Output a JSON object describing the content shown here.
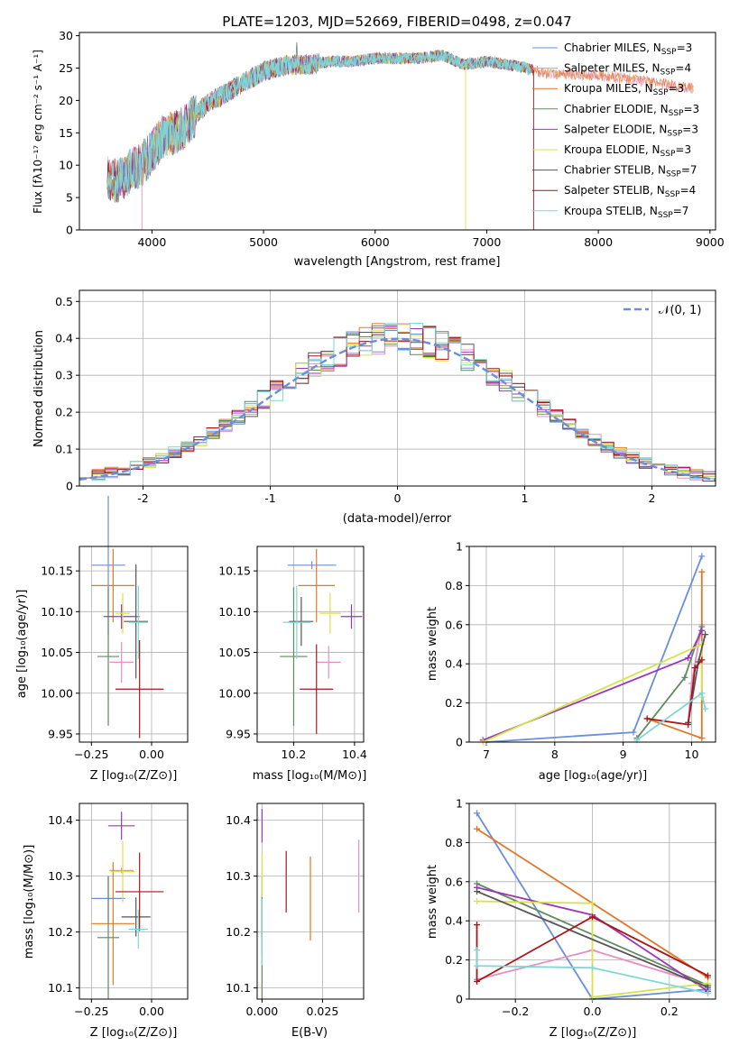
{
  "figure_title": "PLATE=1203, MJD=52669, FIBERID=0498, z=0.047",
  "colors": [
    "#6a8fd8",
    "#e58fc2",
    "#e0782a",
    "#5f8a5f",
    "#9a36b8",
    "#d7e24a",
    "#555555",
    "#a8161c",
    "#7fd6d8"
  ],
  "chart_data": [
    {
      "id": "spectrum",
      "type": "line",
      "xlabel": "wavelength [Angstrom, rest frame]",
      "ylabel": "Flux [fλ10⁻¹⁷ erg cm⁻² s⁻¹ A⁻¹]",
      "xlim": [
        3350,
        9050
      ],
      "ylim": [
        0,
        30.5
      ],
      "x_ticks": [
        4000,
        5000,
        6000,
        7000,
        8000,
        9000
      ],
      "y_ticks": [
        0,
        5,
        10,
        15,
        20,
        25,
        30
      ],
      "data_points": {
        "x": [
          3600,
          3700,
          3800,
          3900,
          4000,
          4100,
          4200,
          4300,
          4400,
          4500,
          4600,
          4800,
          5000,
          5200,
          5400,
          5600,
          5800,
          6000,
          6200,
          6400,
          6600,
          6800,
          7000,
          7200,
          7350,
          7450,
          7600,
          7800,
          8000,
          8200,
          8400,
          8600,
          8800
        ],
        "y": [
          8,
          7.5,
          9,
          10,
          12,
          14.5,
          15,
          16,
          18,
          19.5,
          20.5,
          22.5,
          24.5,
          25.5,
          25.5,
          26,
          26,
          26.5,
          26.5,
          26.5,
          27,
          25.5,
          26,
          25.5,
          25,
          24.5,
          24,
          24,
          24,
          23.5,
          23,
          22.5,
          22
        ]
      },
      "series": [
        {
          "name": "Chabrier MILES, N",
          "sub": "SSP",
          "suffix": "=3"
        },
        {
          "name": "Salpeter MILES, N",
          "sub": "SSP",
          "suffix": "=4"
        },
        {
          "name": "Kroupa MILES, N",
          "sub": "SSP",
          "suffix": "=3"
        },
        {
          "name": "Chabrier ELODIE, N",
          "sub": "SSP",
          "suffix": "=3"
        },
        {
          "name": "Salpeter ELODIE, N",
          "sub": "SSP",
          "suffix": "=3"
        },
        {
          "name": "Kroupa ELODIE, N",
          "sub": "SSP",
          "suffix": "=3"
        },
        {
          "name": "Chabrier STELIB, N",
          "sub": "SSP",
          "suffix": "=7"
        },
        {
          "name": "Salpeter STELIB, N",
          "sub": "SSP",
          "suffix": "=4"
        },
        {
          "name": "Kroupa STELIB, N",
          "sub": "SSP",
          "suffix": "=7"
        }
      ]
    },
    {
      "id": "residuals",
      "type": "line",
      "xlabel": "(data-model)/error",
      "ylabel": "Normed distribution",
      "xlim": [
        -2.5,
        2.5
      ],
      "ylim": [
        0,
        0.53
      ],
      "x_ticks": [
        -2,
        -1,
        0,
        1,
        2
      ],
      "y_ticks": [
        0.0,
        0.1,
        0.2,
        0.3,
        0.4,
        0.5
      ],
      "bin_width": 0.1,
      "legend": "𝒩(0, 1)",
      "grid": true
    },
    {
      "id": "age_vs_Z",
      "type": "scatter",
      "xlabel": "Z [log₁₀(Z/Z⊙)]",
      "ylabel": "age  [log₁₀(age/yr)]",
      "xlim": [
        -0.3,
        0.15
      ],
      "ylim": [
        9.94,
        10.18
      ],
      "x_ticks": [
        -0.25,
        0.0
      ],
      "x_tick_labels": [
        "−0.25",
        "0.00"
      ],
      "y_ticks": [
        9.95,
        10.0,
        10.05,
        10.1,
        10.15
      ],
      "y_tick_labels": [
        "9.95",
        "10.00",
        "10.05",
        "10.10",
        "10.15"
      ],
      "points": [
        {
          "x": -0.18,
          "y": 10.157,
          "xerr": 0.07,
          "yerr": 0.085
        },
        {
          "x": -0.125,
          "y": 10.038,
          "xerr": 0.05,
          "yerr": 0.025
        },
        {
          "x": -0.16,
          "y": 10.132,
          "xerr": 0.09,
          "yerr": 0.045
        },
        {
          "x": -0.18,
          "y": 10.045,
          "xerr": 0.045,
          "yerr": 0.085
        },
        {
          "x": -0.125,
          "y": 10.094,
          "xerr": 0.075,
          "yerr": 0.015
        },
        {
          "x": -0.12,
          "y": 10.098,
          "xerr": 0.03,
          "yerr": 0.025
        },
        {
          "x": -0.065,
          "y": 10.088,
          "xerr": 0.05,
          "yerr": 0.07
        },
        {
          "x": -0.05,
          "y": 10.005,
          "xerr": 0.1,
          "yerr": 0.06
        },
        {
          "x": -0.055,
          "y": 10.087,
          "xerr": 0.04,
          "yerr": 0.045
        }
      ]
    },
    {
      "id": "age_vs_mass",
      "type": "scatter",
      "xlabel": "mass [log₁₀(M/M⊙)]",
      "xlim": [
        10.08,
        10.43
      ],
      "ylim": [
        9.94,
        10.18
      ],
      "x_ticks": [
        10.2,
        10.4
      ],
      "x_tick_labels": [
        "10.2",
        "10.4"
      ],
      "y_ticks": [
        9.95,
        10.0,
        10.05,
        10.1,
        10.15
      ],
      "y_tick_labels": [
        "9.95",
        "10.00",
        "10.05",
        "10.10",
        "10.15"
      ],
      "points": [
        {
          "x": 10.26,
          "y": 10.157,
          "xerr": 0.08,
          "yerr": 0.005
        },
        {
          "x": 10.315,
          "y": 10.038,
          "xerr": 0.04,
          "yerr": 0.02
        },
        {
          "x": 10.275,
          "y": 10.132,
          "xerr": 0.06,
          "yerr": 0.045
        },
        {
          "x": 10.2,
          "y": 10.045,
          "xerr": 0.045,
          "yerr": 0.085
        },
        {
          "x": 10.39,
          "y": 10.094,
          "xerr": 0.035,
          "yerr": 0.015
        },
        {
          "x": 10.32,
          "y": 10.098,
          "xerr": 0.035,
          "yerr": 0.025
        },
        {
          "x": 10.225,
          "y": 10.088,
          "xerr": 0.04,
          "yerr": 0.03
        },
        {
          "x": 10.275,
          "y": 10.005,
          "xerr": 0.055,
          "yerr": 0.055
        },
        {
          "x": 10.21,
          "y": 10.087,
          "xerr": 0.045,
          "yerr": 0.045
        }
      ]
    },
    {
      "id": "mass_weight_vs_age",
      "type": "line",
      "xlabel": "age  [log₁₀(age/yr)]",
      "ylabel": "mass weight",
      "xlim": [
        6.75,
        10.35
      ],
      "ylim": [
        0,
        1.0
      ],
      "x_ticks": [
        7,
        8,
        9,
        10
      ],
      "y_ticks": [
        0.0,
        0.2,
        0.4,
        0.6,
        0.8,
        1.0
      ],
      "series": [
        {
          "x": [
            7.0,
            9.15,
            10.15
          ],
          "y": [
            0.0,
            0.05,
            0.95
          ]
        },
        {
          "x": [
            9.95,
            10.0,
            10.15
          ],
          "y": [
            0.1,
            0.3,
            0.6
          ]
        },
        {
          "x": [
            9.35,
            10.15,
            10.15
          ],
          "y": [
            0.12,
            0.02,
            0.87
          ]
        },
        {
          "x": [
            9.2,
            9.9,
            10.15
          ],
          "y": [
            0.02,
            0.33,
            0.59
          ]
        },
        {
          "x": [
            6.95,
            9.95,
            10.15
          ],
          "y": [
            0.01,
            0.43,
            0.57
          ]
        },
        {
          "x": [
            6.95,
            10.15,
            10.15
          ],
          "y": [
            0.0,
            0.5,
            0.23
          ]
        },
        {
          "x": [
            9.95,
            10.1,
            10.2
          ],
          "y": [
            0.1,
            0.41,
            0.55
          ]
        },
        {
          "x": [
            9.35,
            9.95,
            10.05,
            10.15
          ],
          "y": [
            0.12,
            0.09,
            0.38,
            0.42
          ]
        },
        {
          "x": [
            9.2,
            10.15,
            10.2
          ],
          "y": [
            0.01,
            0.25,
            0.17
          ]
        }
      ]
    },
    {
      "id": "mass_vs_Z",
      "type": "scatter",
      "xlabel": "Z [log₁₀(Z/Z⊙)]",
      "ylabel": "mass [log₁₀(M/M⊙)]",
      "xlim": [
        -0.3,
        0.15
      ],
      "ylim": [
        10.08,
        10.43
      ],
      "x_ticks": [
        -0.25,
        0.0
      ],
      "x_tick_labels": [
        "−0.25",
        "0.00"
      ],
      "y_ticks": [
        10.1,
        10.2,
        10.3,
        10.4
      ],
      "y_tick_labels": [
        "10.1",
        "10.2",
        "10.3",
        "10.4"
      ],
      "points": [
        {
          "x": -0.18,
          "y": 10.26,
          "xerr": 0.07,
          "yerr": 0.04
        },
        {
          "x": -0.125,
          "y": 10.31,
          "xerr": 0.05,
          "yerr": 0.005
        },
        {
          "x": -0.16,
          "y": 10.215,
          "xerr": 0.09,
          "yerr": 0.11
        },
        {
          "x": -0.18,
          "y": 10.19,
          "xerr": 0.045,
          "yerr": 0.11
        },
        {
          "x": -0.125,
          "y": 10.39,
          "xerr": 0.055,
          "yerr": 0.025
        },
        {
          "x": -0.12,
          "y": 10.308,
          "xerr": 0.05,
          "yerr": 0.055
        },
        {
          "x": -0.065,
          "y": 10.227,
          "xerr": 0.06,
          "yerr": 0.035
        },
        {
          "x": -0.05,
          "y": 10.272,
          "xerr": 0.1,
          "yerr": 0.07
        },
        {
          "x": -0.055,
          "y": 10.205,
          "xerr": 0.04,
          "yerr": 0.035
        }
      ]
    },
    {
      "id": "mass_vs_ebv",
      "type": "scatter",
      "xlabel": "E(B-V)",
      "xlim": [
        -0.002,
        0.042
      ],
      "ylim": [
        10.08,
        10.43
      ],
      "x_ticks": [
        0.0,
        0.025
      ],
      "x_tick_labels": [
        "0.000",
        "0.025"
      ],
      "y_ticks": [
        10.1,
        10.2,
        10.3,
        10.4
      ],
      "y_tick_labels": [
        "10.1",
        "10.2",
        "10.3",
        "10.4"
      ],
      "points": [
        {
          "x": 0.0,
          "y": 10.2,
          "yerr": 0.04
        },
        {
          "x": 0.04,
          "y": 10.3,
          "yerr": 0.065
        },
        {
          "x": 0.02,
          "y": 10.26,
          "yerr": 0.075
        },
        {
          "x": 0.0,
          "y": 10.19,
          "yerr": 0.11
        },
        {
          "x": 0.0,
          "y": 10.39,
          "yerr": 0.03
        },
        {
          "x": 0.0,
          "y": 10.3,
          "yerr": 0.04
        },
        {
          "x": 0.0,
          "y": 10.227,
          "yerr": 0.035
        },
        {
          "x": 0.01,
          "y": 10.29,
          "yerr": 0.055
        },
        {
          "x": 0.0,
          "y": 10.2,
          "yerr": 0.06
        }
      ]
    },
    {
      "id": "mass_weight_vs_Z",
      "type": "line",
      "xlabel": "Z [log₁₀(Z/Z⊙)]",
      "ylabel": "mass weight",
      "xlim": [
        -0.32,
        0.32
      ],
      "ylim": [
        0,
        1.0
      ],
      "x_ticks": [
        -0.2,
        0.0,
        0.2
      ],
      "x_tick_labels": [
        "−0.2",
        "0.0",
        "0.2"
      ],
      "y_ticks": [
        0.0,
        0.2,
        0.4,
        0.6,
        0.8,
        1.0
      ],
      "series": [
        {
          "x": [
            -0.3,
            0.0,
            0.3
          ],
          "y": [
            0.95,
            0.0,
            0.05
          ]
        },
        {
          "x": [
            -0.3,
            0.0,
            0.3
          ],
          "y": [
            0.1,
            0.25,
            0.07
          ]
        },
        {
          "x": [
            -0.3,
            0.3
          ],
          "y": [
            0.87,
            0.11
          ]
        },
        {
          "x": [
            -0.3,
            0.3
          ],
          "y": [
            0.59,
            0.07
          ]
        },
        {
          "x": [
            -0.3,
            0.0,
            0.3
          ],
          "y": [
            0.57,
            0.43,
            0.04
          ]
        },
        {
          "x": [
            -0.3,
            0.0,
            0.0,
            0.3
          ],
          "y": [
            0.5,
            0.49,
            0.01,
            0.08
          ]
        },
        {
          "x": [
            -0.3,
            0.3
          ],
          "y": [
            0.55,
            0.06
          ]
        },
        {
          "x": [
            -0.3,
            -0.3,
            0.0,
            0.3
          ],
          "y": [
            0.38,
            0.09,
            0.42,
            0.12
          ]
        },
        {
          "x": [
            -0.3,
            -0.3,
            0.0,
            0.3
          ],
          "y": [
            0.25,
            0.17,
            0.16,
            0.03
          ]
        }
      ]
    }
  ]
}
